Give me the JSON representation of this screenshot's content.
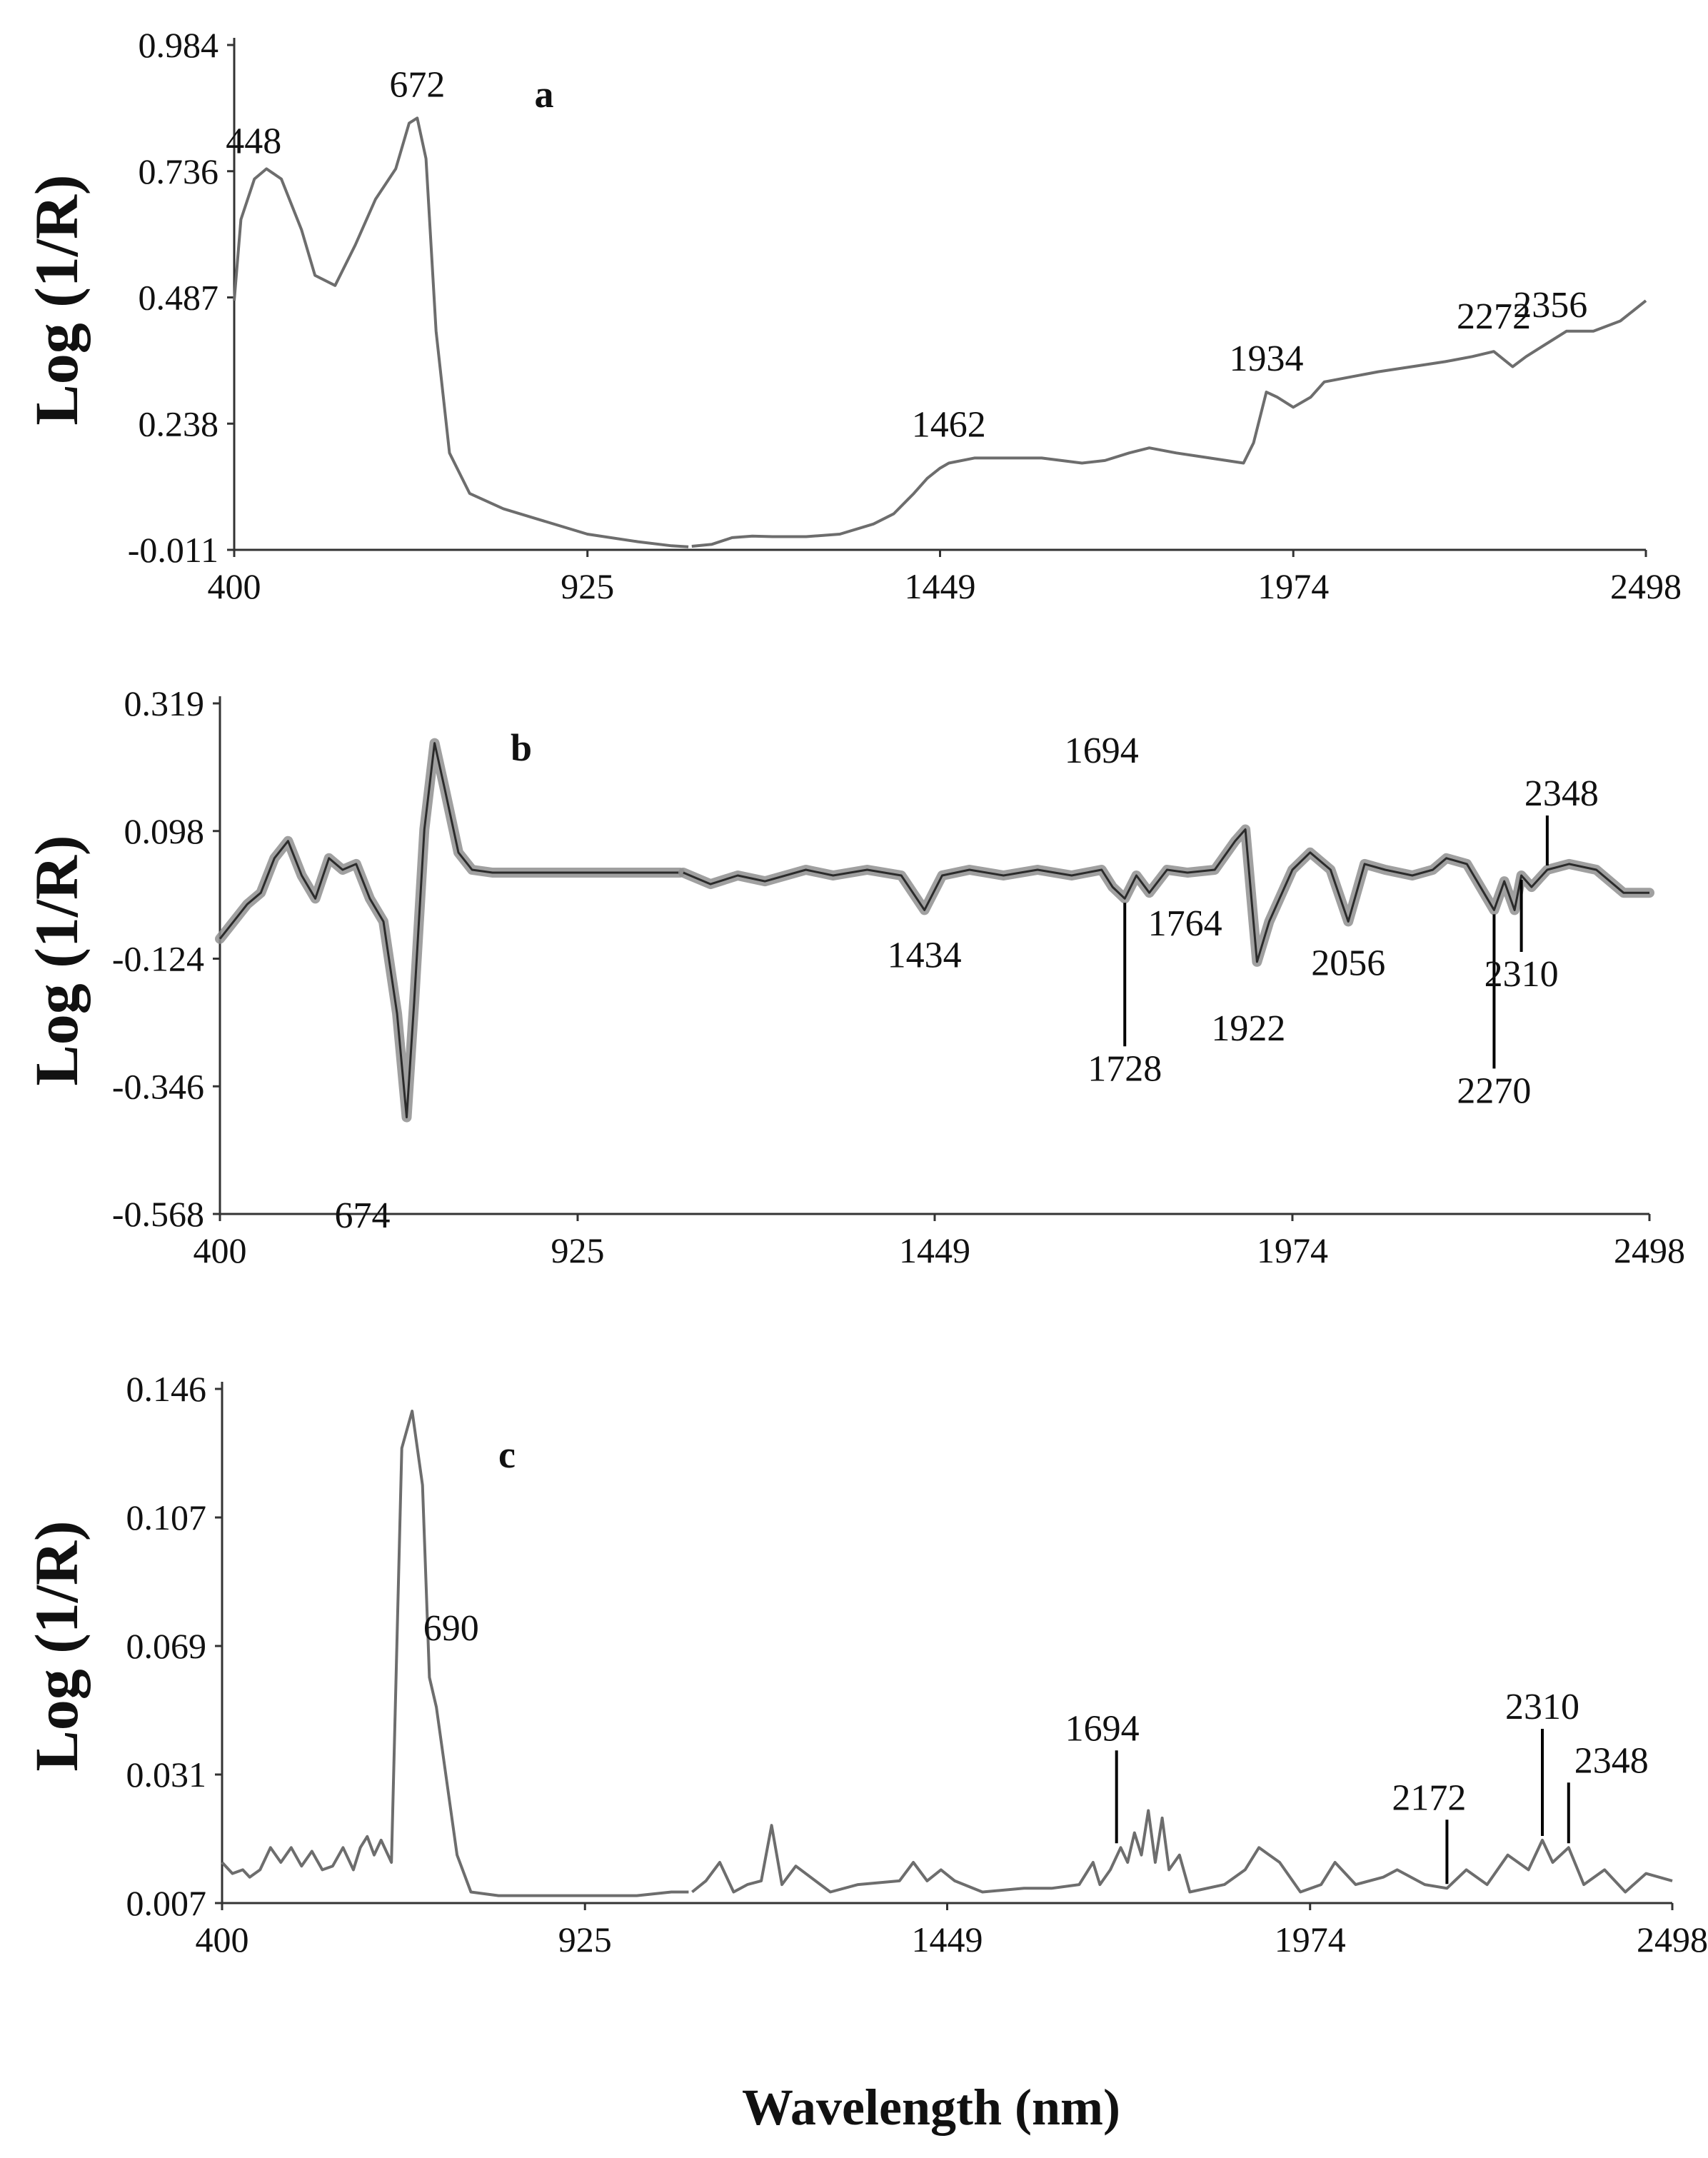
{
  "figure": {
    "x_axis_label": "Wavelength (nm)"
  },
  "chart_data": [
    {
      "panel": "a",
      "type": "line",
      "ylabel": "Log (1/R)",
      "xlim": [
        400,
        2498
      ],
      "ylim": [
        -0.011,
        0.984
      ],
      "x_ticks": [
        "400",
        "925",
        "1449",
        "1974",
        "2498"
      ],
      "y_ticks": [
        "0.984",
        "0.736",
        "0.487",
        "0.238",
        "-0.011"
      ],
      "band": false,
      "series": [
        {
          "segments": [
            {
              "x": [
                400,
                410,
                430,
                448,
                470,
                500,
                520,
                550,
                580,
                610,
                640,
                660,
                672,
                685,
                700,
                720,
                750,
                800,
                850,
                925,
                1000,
                1050,
                1075
              ],
              "y": [
                0.48,
                0.64,
                0.72,
                0.74,
                0.72,
                0.62,
                0.53,
                0.51,
                0.59,
                0.68,
                0.74,
                0.83,
                0.84,
                0.76,
                0.42,
                0.18,
                0.1,
                0.07,
                0.05,
                0.02,
                0.005,
                -0.003,
                -0.005
              ]
            },
            {
              "x": [
                1080,
                1110,
                1140,
                1170,
                1200,
                1250,
                1300,
                1350,
                1380,
                1410,
                1430,
                1449,
                1462,
                1500,
                1550,
                1600,
                1660,
                1694,
                1730,
                1760,
                1800,
                1850,
                1900,
                1915,
                1934,
                1950,
                1974,
                2000,
                2020,
                2060,
                2100,
                2150,
                2200,
                2240,
                2272,
                2300,
                2320,
                2356,
                2380,
                2420,
                2460,
                2498
              ],
              "y": [
                -0.004,
                0.0,
                0.013,
                0.016,
                0.015,
                0.015,
                0.02,
                0.04,
                0.06,
                0.1,
                0.13,
                0.15,
                0.16,
                0.17,
                0.17,
                0.17,
                0.16,
                0.165,
                0.18,
                0.19,
                0.18,
                0.17,
                0.16,
                0.2,
                0.3,
                0.29,
                0.27,
                0.29,
                0.32,
                0.33,
                0.34,
                0.35,
                0.36,
                0.37,
                0.38,
                0.35,
                0.37,
                0.4,
                0.42,
                0.42,
                0.44,
                0.48
              ]
            }
          ]
        }
      ],
      "peak_labels": [
        {
          "text": "448",
          "x": 448,
          "y": 0.74
        },
        {
          "text": "672",
          "x": 672,
          "y": 0.84
        },
        {
          "text": "1462",
          "x": 1462,
          "y": 0.17
        },
        {
          "text": "1934",
          "x": 1934,
          "y": 0.3
        },
        {
          "text": "2272",
          "x": 2272,
          "y": 0.38
        },
        {
          "text": "2356",
          "x": 2356,
          "y": 0.4
        }
      ],
      "panel_letter": "a"
    },
    {
      "panel": "b",
      "type": "line",
      "ylabel": "Log (1/R)",
      "xlim": [
        400,
        2498
      ],
      "ylim": [
        -0.568,
        0.319
      ],
      "x_ticks": [
        "400",
        "925",
        "1449",
        "1974",
        "2498"
      ],
      "y_ticks": [
        "0.319",
        "0.098",
        "-0.124",
        "-0.346",
        "-0.568"
      ],
      "band": true,
      "series": [
        {
          "segments": [
            {
              "x": [
                400,
                420,
                440,
                460,
                480,
                500,
                520,
                540,
                560,
                580,
                600,
                620,
                640,
                660,
                674,
                685,
                700,
                715,
                730,
                750,
                770,
                800,
                850,
                925,
                1000,
                1050,
                1075
              ],
              "y": [
                -0.09,
                -0.06,
                -0.03,
                -0.01,
                0.05,
                0.08,
                0.02,
                -0.02,
                0.05,
                0.03,
                0.04,
                -0.02,
                -0.06,
                -0.22,
                -0.4,
                -0.2,
                0.1,
                0.25,
                0.17,
                0.06,
                0.03,
                0.025,
                0.025,
                0.025,
                0.025,
                0.025,
                0.025
              ]
            },
            {
              "x": [
                1080,
                1120,
                1160,
                1200,
                1260,
                1300,
                1350,
                1400,
                1434,
                1460,
                1500,
                1550,
                1600,
                1650,
                1694,
                1710,
                1728,
                1745,
                1764,
                1790,
                1820,
                1860,
                1890,
                1905,
                1922,
                1940,
                1974,
                2000,
                2030,
                2056,
                2080,
                2110,
                2150,
                2180,
                2200,
                2230,
                2260,
                2270,
                2285,
                2300,
                2310,
                2325,
                2348,
                2380,
                2420,
                2460,
                2498
              ],
              "y": [
                0.025,
                0.005,
                0.02,
                0.01,
                0.03,
                0.02,
                0.03,
                0.02,
                -0.04,
                0.02,
                0.03,
                0.02,
                0.03,
                0.02,
                0.03,
                0.0,
                -0.02,
                0.02,
                -0.01,
                0.03,
                0.025,
                0.03,
                0.08,
                0.1,
                -0.13,
                -0.06,
                0.03,
                0.06,
                0.03,
                -0.06,
                0.04,
                0.03,
                0.02,
                0.03,
                0.05,
                0.04,
                -0.02,
                -0.04,
                0.01,
                -0.04,
                0.02,
                0.0,
                0.03,
                0.04,
                0.03,
                -0.01,
                -0.01
              ]
            }
          ]
        }
      ],
      "peak_labels": [
        {
          "text": "674",
          "x": 674,
          "y": -0.48,
          "leader": false
        },
        {
          "text": "1434",
          "x": 1434,
          "y": -0.04,
          "leader": false
        },
        {
          "text": "1694",
          "x": 1694,
          "y": 0.03,
          "leader": false
        },
        {
          "text": "1764",
          "x": 1764,
          "y": -0.01,
          "leader": false
        },
        {
          "text": "1728",
          "x": 1728,
          "y": -0.02,
          "leader": true
        },
        {
          "text": "1922",
          "x": 1922,
          "y": -0.13,
          "leader": false
        },
        {
          "text": "2056",
          "x": 2056,
          "y": -0.06,
          "leader": false
        },
        {
          "text": "2270",
          "x": 2270,
          "y": -0.04,
          "leader": true
        },
        {
          "text": "2310",
          "x": 2310,
          "y": 0.02,
          "leader": true
        },
        {
          "text": "2348",
          "x": 2348,
          "y": 0.03,
          "leader": true
        }
      ],
      "panel_letter": "b"
    },
    {
      "panel": "c",
      "type": "line",
      "ylabel": "Log (1/R)",
      "xlim": [
        400,
        2498
      ],
      "ylim": [
        0.007,
        0.146
      ],
      "x_ticks": [
        "400",
        "925",
        "1449",
        "1974",
        "2498"
      ],
      "y_ticks": [
        "0.146",
        "0.107",
        "0.069",
        "0.031",
        "0.007"
      ],
      "band": false,
      "series": [
        {
          "segments": [
            {
              "x": [
                400,
                415,
                430,
                440,
                455,
                470,
                485,
                500,
                515,
                530,
                545,
                560,
                575,
                590,
                600,
                610,
                620,
                630,
                645,
                660,
                675,
                690,
                700,
                710,
                725,
                740,
                760,
                800,
                850,
                925,
                1000,
                1050,
                1075
              ],
              "y": [
                0.018,
                0.015,
                0.016,
                0.014,
                0.016,
                0.022,
                0.018,
                0.022,
                0.017,
                0.021,
                0.016,
                0.017,
                0.022,
                0.016,
                0.022,
                0.025,
                0.02,
                0.024,
                0.018,
                0.13,
                0.14,
                0.12,
                0.068,
                0.06,
                0.04,
                0.02,
                0.01,
                0.009,
                0.009,
                0.009,
                0.009,
                0.01,
                0.01
              ]
            },
            {
              "x": [
                1080,
                1100,
                1120,
                1140,
                1160,
                1180,
                1195,
                1210,
                1230,
                1280,
                1320,
                1380,
                1400,
                1420,
                1440,
                1460,
                1500,
                1560,
                1600,
                1640,
                1660,
                1670,
                1685,
                1700,
                1710,
                1720,
                1730,
                1740,
                1750,
                1760,
                1770,
                1785,
                1800,
                1850,
                1880,
                1900,
                1930,
                1960,
                1990,
                2010,
                2040,
                2080,
                2100,
                2140,
                2172,
                2200,
                2230,
                2260,
                2290,
                2310,
                2325,
                2348,
                2370,
                2400,
                2430,
                2460,
                2498
              ],
              "y": [
                0.01,
                0.013,
                0.018,
                0.01,
                0.012,
                0.013,
                0.028,
                0.012,
                0.017,
                0.01,
                0.012,
                0.013,
                0.018,
                0.013,
                0.016,
                0.013,
                0.01,
                0.011,
                0.011,
                0.012,
                0.018,
                0.012,
                0.016,
                0.022,
                0.018,
                0.026,
                0.02,
                0.032,
                0.018,
                0.03,
                0.016,
                0.02,
                0.01,
                0.012,
                0.016,
                0.022,
                0.018,
                0.01,
                0.012,
                0.018,
                0.012,
                0.014,
                0.016,
                0.012,
                0.011,
                0.016,
                0.012,
                0.02,
                0.016,
                0.024,
                0.018,
                0.022,
                0.012,
                0.016,
                0.01,
                0.015,
                0.013
              ]
            }
          ]
        }
      ],
      "peak_labels": [
        {
          "text": "690",
          "x": 690,
          "y": 0.068,
          "leader": false
        },
        {
          "text": "1694",
          "x": 1694,
          "y": 0.022,
          "leader": true
        },
        {
          "text": "2172",
          "x": 2172,
          "y": 0.011,
          "leader": true
        },
        {
          "text": "2310",
          "x": 2310,
          "y": 0.024,
          "leader": true
        },
        {
          "text": "2348",
          "x": 2348,
          "y": 0.022,
          "leader": true
        }
      ],
      "panel_letter": "c"
    }
  ]
}
